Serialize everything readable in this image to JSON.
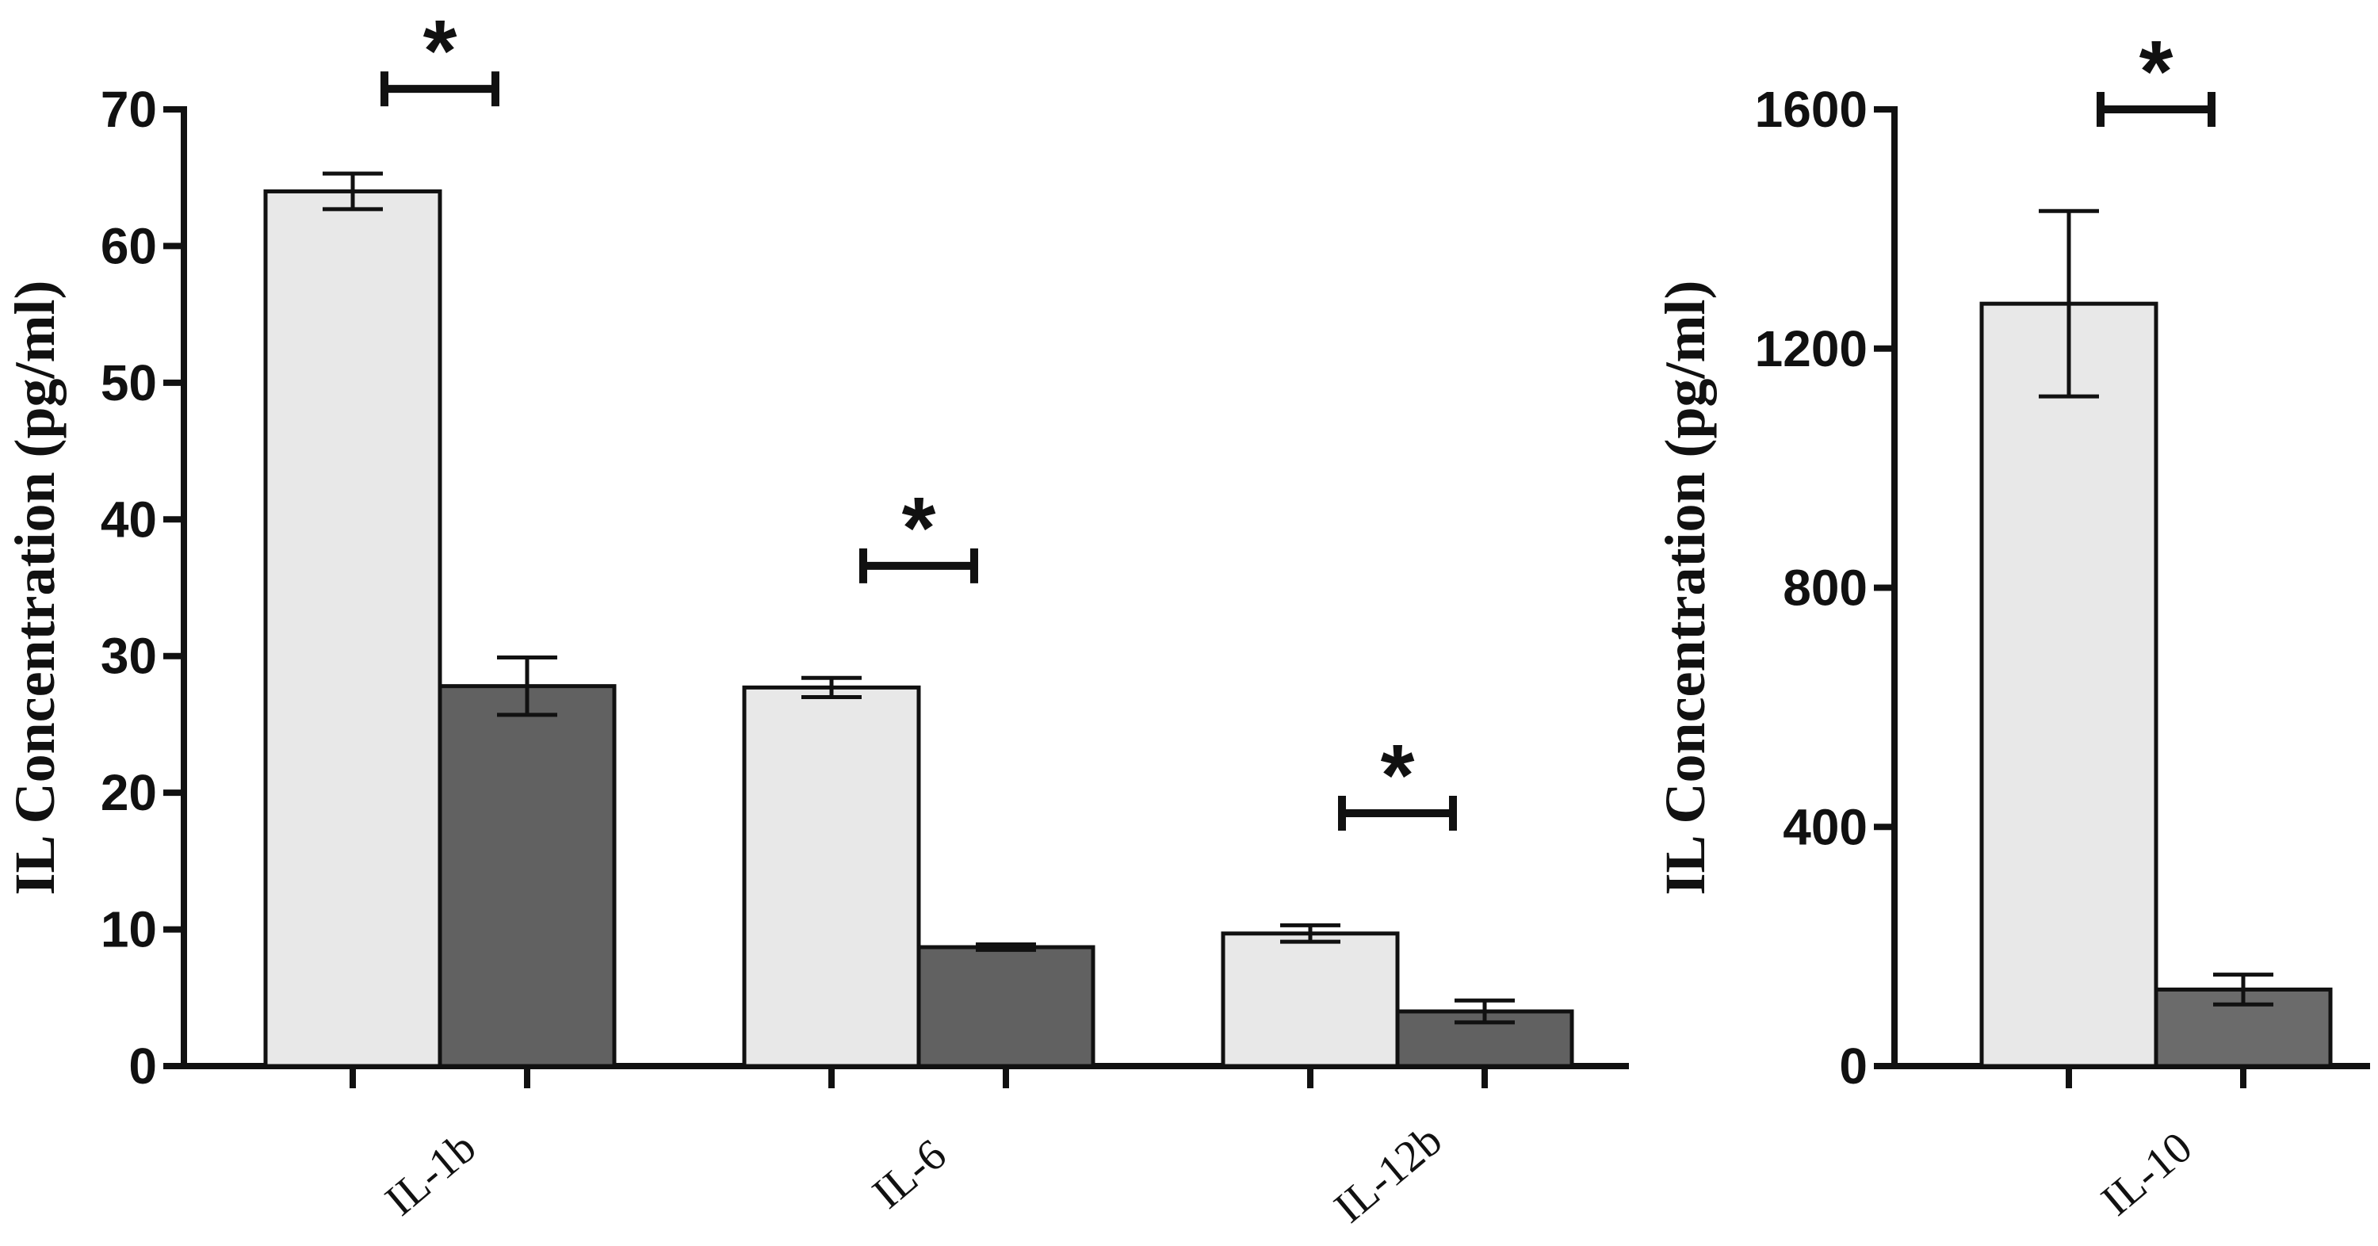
{
  "chart_data": [
    {
      "type": "bar",
      "ylabel": "IL Concentration (pg/ml)",
      "xlabel": "",
      "ylim": [
        0,
        70
      ],
      "yticks": [
        0,
        10,
        20,
        30,
        40,
        50,
        60,
        70
      ],
      "categories": [
        "IL-1b",
        "IL-6",
        "IL-12b"
      ],
      "series": [
        {
          "values": [
            64,
            27.7,
            9.7
          ],
          "errors": [
            1.3,
            0.7,
            0.6
          ],
          "color": "#e8e8e8"
        },
        {
          "values": [
            27.8,
            8.7,
            4.0
          ],
          "errors": [
            2.1,
            0.2,
            0.8
          ],
          "color": "#616161"
        }
      ],
      "significance": [
        {
          "category": "IL-1b",
          "label": "*",
          "level": 71.5
        },
        {
          "category": "IL-6",
          "label": "*",
          "level": 36.6
        },
        {
          "category": "IL-12b",
          "label": "*",
          "level": 18.5
        }
      ],
      "grid": false,
      "legend": "none"
    },
    {
      "type": "bar",
      "ylabel": "IL Concentration (pg/ml)",
      "xlabel": "",
      "ylim": [
        0,
        1600
      ],
      "yticks": [
        0,
        400,
        800,
        1200,
        1600
      ],
      "categories": [
        "IL-10"
      ],
      "series": [
        {
          "values": [
            1275
          ],
          "errors": [
            155
          ],
          "color": "#e8e8e8"
        },
        {
          "values": [
            128
          ],
          "errors": [
            25
          ],
          "color": "#6b6b6b"
        }
      ],
      "significance": [
        {
          "category": "IL-10",
          "label": "*",
          "level": 1600
        }
      ],
      "grid": false,
      "legend": "none"
    }
  ]
}
